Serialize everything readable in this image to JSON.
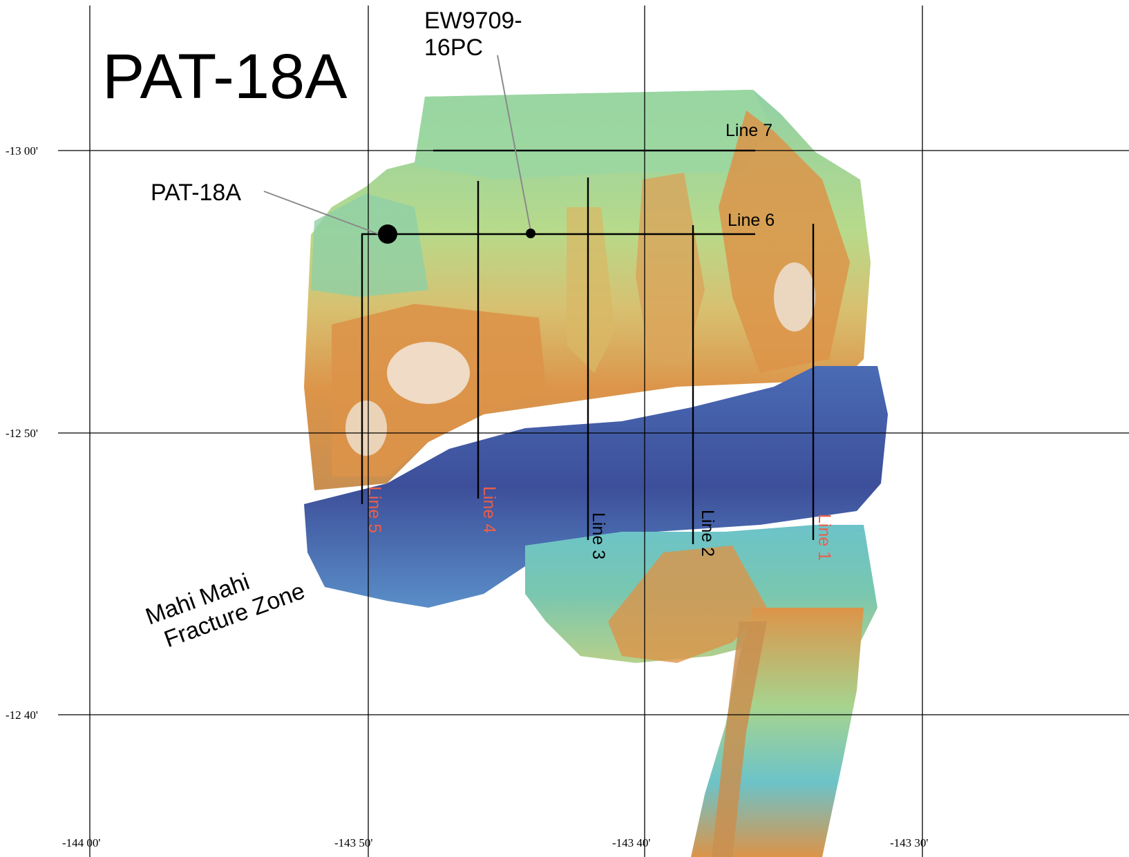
{
  "map_title": "PAT-18A",
  "longitude_ticks": [
    "-144 00'",
    "-143 50'",
    "-143 40'",
    "-143 30'"
  ],
  "latitude_ticks": [
    "-13 00'",
    "-12 50'",
    "-12 40'"
  ],
  "sites": {
    "primary": {
      "label": "PAT-18A"
    },
    "core": {
      "label_line1": "EW9709-",
      "label_line2": "16PC"
    }
  },
  "survey_lines": {
    "line1": "Line 1",
    "line2": "Line 2",
    "line3": "Line 3",
    "line4": "Line 4",
    "line5": "Line 5",
    "line6": "Line 6",
    "line7": "Line 7"
  },
  "feature": {
    "label_line1": "Mahi Mahi",
    "label_line2": "Fracture Zone"
  },
  "colors": {
    "deep": "#3d4f9a",
    "mid_deep": "#5a8ec8",
    "mid": "#6cc3c9",
    "shallow": "#a9d98f",
    "upper": "#d9d77c",
    "ridge": "#dc9449",
    "summit": "#f2f2f2",
    "red_label": "#e8604c"
  }
}
